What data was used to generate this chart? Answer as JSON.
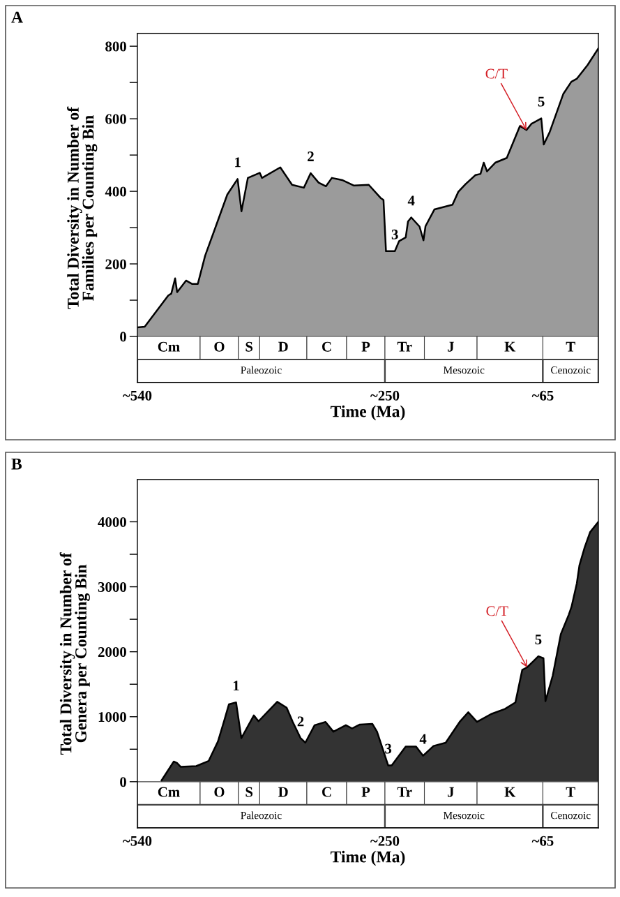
{
  "chart_data": [
    {
      "type": "area",
      "title": "A",
      "xlabel": "Time (Ma)",
      "ylabel": "Total Diversity in Number of\nFamilies per Counting Bin",
      "x": [
        540,
        531.4,
        503.8,
        500.3,
        495.8,
        493.4,
        483.0,
        476.1,
        469.2,
        460.6,
        450.2,
        434.7,
        422.6,
        418.1,
        410.6,
        396.7,
        394.0,
        372.6,
        358.8,
        345.0,
        337.0,
        327.7,
        319.1,
        312.2,
        300.1,
        286.3,
        269.0,
        255.2,
        251.7,
        248.8,
        238.4,
        233.4,
        225.7,
        223.0,
        219.2,
        209.5,
        204.9,
        202.5,
        192.1,
        170.9,
        164.0,
        155.5,
        143.9,
        138.1,
        134.3,
        130.4,
        120.8,
        107.3,
        91.9,
        84.2,
        78.5,
        66.9,
        64.0,
        57.1,
        41.2,
        31.7,
        25.4,
        12.7,
        0
      ],
      "series": [
        {
          "color": "#9b9b9b",
          "values": [
            25,
            27,
            113,
            118,
            160,
            122,
            154,
            145,
            145,
            223,
            290,
            391,
            434,
            345,
            437,
            451,
            437,
            466,
            418,
            410,
            450,
            424,
            414,
            437,
            431,
            416,
            418,
            382,
            376,
            235,
            235,
            263,
            273,
            317,
            328,
            303,
            265,
            304,
            350,
            363,
            399,
            420,
            445,
            448,
            479,
            455,
            479,
            492,
            580,
            569,
            586,
            601,
            529,
            563,
            668,
            702,
            710,
            748,
            794
          ]
        }
      ],
      "xlim": [
        540,
        0
      ],
      "xticks": [
        {
          "value": 540,
          "label": "~540"
        },
        {
          "value": 250,
          "label": "~250"
        },
        {
          "value": 65,
          "label": "~65"
        }
      ],
      "ylim": [
        -127,
        835
      ],
      "yticks": [
        0,
        {
          "value": 100,
          "label": null
        },
        200,
        {
          "value": 300,
          "label": null
        },
        400,
        {
          "value": 500,
          "label": null
        },
        600,
        {
          "value": 700,
          "label": null
        },
        800
      ],
      "grid": false,
      "bands": [
        {
          "axis": "x",
          "from": 540,
          "to": 466.5,
          "label": "Cm"
        },
        {
          "axis": "x",
          "from": 466.5,
          "to": 421.6,
          "label": "O"
        },
        {
          "axis": "x",
          "from": 421.6,
          "to": 396.7,
          "label": "S"
        },
        {
          "axis": "x",
          "from": 396.7,
          "to": 341.5,
          "label": "D"
        },
        {
          "axis": "x",
          "from": 341.5,
          "to": 294.9,
          "label": "C"
        },
        {
          "axis": "x",
          "from": 294.9,
          "to": 250,
          "label": "P"
        },
        {
          "axis": "x",
          "from": 250,
          "to": 203.8,
          "label": "Tr"
        },
        {
          "axis": "x",
          "from": 203.8,
          "to": 142.1,
          "label": "J"
        },
        {
          "axis": "x",
          "from": 142.1,
          "to": 65,
          "label": "K"
        },
        {
          "axis": "x",
          "from": 65,
          "to": 0,
          "label": "T"
        },
        {
          "axis": "x",
          "from": 540,
          "to": 250,
          "label": "Paleozoic"
        },
        {
          "axis": "x",
          "from": 250,
          "to": 65,
          "label": "Mesozoic"
        },
        {
          "axis": "x",
          "from": 65,
          "to": 0,
          "label": "Cenozoic"
        }
      ],
      "annotations": [
        {
          "text": "1",
          "x": 422.6,
          "y": 434
        },
        {
          "text": "2",
          "x": 337.0,
          "y": 450
        },
        {
          "text": "3",
          "x": 238.4,
          "y": 235
        },
        {
          "text": "4",
          "x": 219.2,
          "y": 328
        },
        {
          "text": "5",
          "x": 66.9,
          "y": 601
        },
        {
          "text": "C/T",
          "x": 84.2,
          "y": 569
        }
      ]
    },
    {
      "type": "area",
      "title": "B",
      "xlabel": "Time (Ma)",
      "ylabel": "Total Diversity in Number of\nGenera per Counting Bin",
      "x": [
        511.7,
        497.4,
        493.7,
        489.4,
        471.1,
        456.5,
        445.6,
        438.3,
        432.8,
        424.4,
        418.2,
        403.6,
        398.1,
        376.2,
        365.2,
        358.0,
        348.8,
        343.3,
        332.4,
        319.6,
        310.4,
        295.8,
        288.5,
        279.4,
        264.8,
        259.3,
        246.2,
        242.1,
        225.7,
        213.6,
        205.4,
        193.1,
        178.9,
        162.5,
        152.4,
        142.2,
        125.8,
        109.5,
        97.2,
        89.2,
        83.5,
        70.3,
        64.3,
        62.0,
        53.5,
        44.0,
        34.7,
        31.5,
        25.3,
        22.2,
        16.0,
        9.7,
        0
      ],
      "series": [
        {
          "color": "#333333",
          "values": [
            20,
            310,
            290,
            230,
            240,
            320,
            620,
            940,
            1190,
            1220,
            670,
            1020,
            930,
            1230,
            1140,
            920,
            670,
            600,
            870,
            920,
            770,
            870,
            820,
            880,
            890,
            770,
            250,
            250,
            540,
            540,
            400,
            550,
            600,
            920,
            1070,
            920,
            1040,
            1120,
            1220,
            1720,
            1760,
            1930,
            1900,
            1240,
            1630,
            2270,
            2570,
            2690,
            3050,
            3330,
            3610,
            3840,
            4000
          ]
        }
      ],
      "xlim": [
        540,
        0
      ],
      "xticks": [
        {
          "value": 540,
          "label": "~540"
        },
        {
          "value": 250,
          "label": "~250"
        },
        {
          "value": 65,
          "label": "~65"
        }
      ],
      "ylim": [
        -711,
        4650
      ],
      "yticks": [
        0,
        {
          "value": 500,
          "label": null
        },
        1000,
        {
          "value": 1500,
          "label": null
        },
        2000,
        {
          "value": 2500,
          "label": null
        },
        3000,
        {
          "value": 3500,
          "label": null
        },
        4000
      ],
      "grid": false,
      "bands": [
        {
          "axis": "x",
          "from": 540,
          "to": 466.5,
          "label": "Cm"
        },
        {
          "axis": "x",
          "from": 466.5,
          "to": 421.6,
          "label": "O"
        },
        {
          "axis": "x",
          "from": 421.6,
          "to": 396.7,
          "label": "S"
        },
        {
          "axis": "x",
          "from": 396.7,
          "to": 341.5,
          "label": "D"
        },
        {
          "axis": "x",
          "from": 341.5,
          "to": 294.9,
          "label": "C"
        },
        {
          "axis": "x",
          "from": 294.9,
          "to": 250,
          "label": "P"
        },
        {
          "axis": "x",
          "from": 250,
          "to": 203.8,
          "label": "Tr"
        },
        {
          "axis": "x",
          "from": 203.8,
          "to": 142.1,
          "label": "J"
        },
        {
          "axis": "x",
          "from": 142.1,
          "to": 65,
          "label": "K"
        },
        {
          "axis": "x",
          "from": 65,
          "to": 0,
          "label": "T"
        },
        {
          "axis": "x",
          "from": 540,
          "to": 250,
          "label": "Paleozoic"
        },
        {
          "axis": "x",
          "from": 250,
          "to": 65,
          "label": "Mesozoic"
        },
        {
          "axis": "x",
          "from": 65,
          "to": 0,
          "label": "Cenozoic"
        }
      ],
      "annotations": [
        {
          "text": "1",
          "x": 424.4,
          "y": 1220
        },
        {
          "text": "2",
          "x": 348.8,
          "y": 670
        },
        {
          "text": "3",
          "x": 246.2,
          "y": 250
        },
        {
          "text": "4",
          "x": 205.4,
          "y": 400
        },
        {
          "text": "5",
          "x": 70.3,
          "y": 1930
        },
        {
          "text": "C/T",
          "x": 83.5,
          "y": 1760
        }
      ]
    }
  ]
}
